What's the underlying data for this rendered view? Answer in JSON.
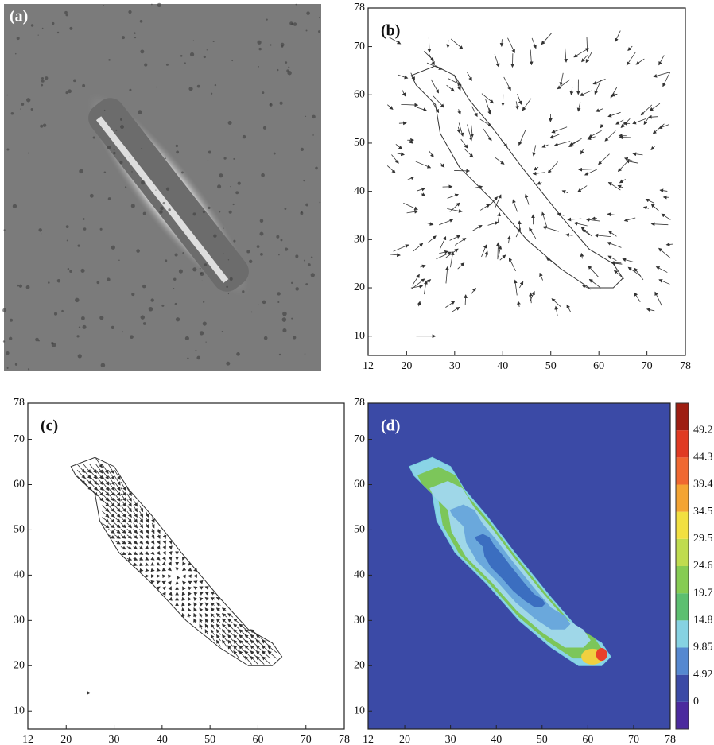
{
  "panels": [
    {
      "label": "(a)"
    },
    {
      "label": "(b)",
      "xlim": [
        12,
        78
      ],
      "ylim": [
        6,
        78
      ],
      "xticks": [
        12,
        20,
        30,
        40,
        50,
        60,
        70,
        78
      ],
      "yticks": [
        10,
        20,
        30,
        40,
        50,
        60,
        70,
        78
      ]
    },
    {
      "label": "(c)",
      "xlim": [
        12,
        78
      ],
      "ylim": [
        6,
        78
      ],
      "xticks": [
        12,
        20,
        30,
        40,
        50,
        60,
        70,
        78
      ],
      "yticks": [
        10,
        20,
        30,
        40,
        50,
        60,
        70,
        78
      ]
    },
    {
      "label": "(d)",
      "xlim": [
        12,
        78
      ],
      "ylim": [
        6,
        78
      ],
      "xticks": [
        12,
        20,
        30,
        40,
        50,
        60,
        70,
        78
      ],
      "yticks": [
        10,
        20,
        30,
        40,
        50,
        60,
        70,
        78
      ],
      "colorbar": [
        "0",
        "4.92",
        "9.85",
        "14.8",
        "19.7",
        "24.6",
        "29.5",
        "34.5",
        "39.4",
        "44.3",
        "49.2"
      ]
    }
  ]
}
